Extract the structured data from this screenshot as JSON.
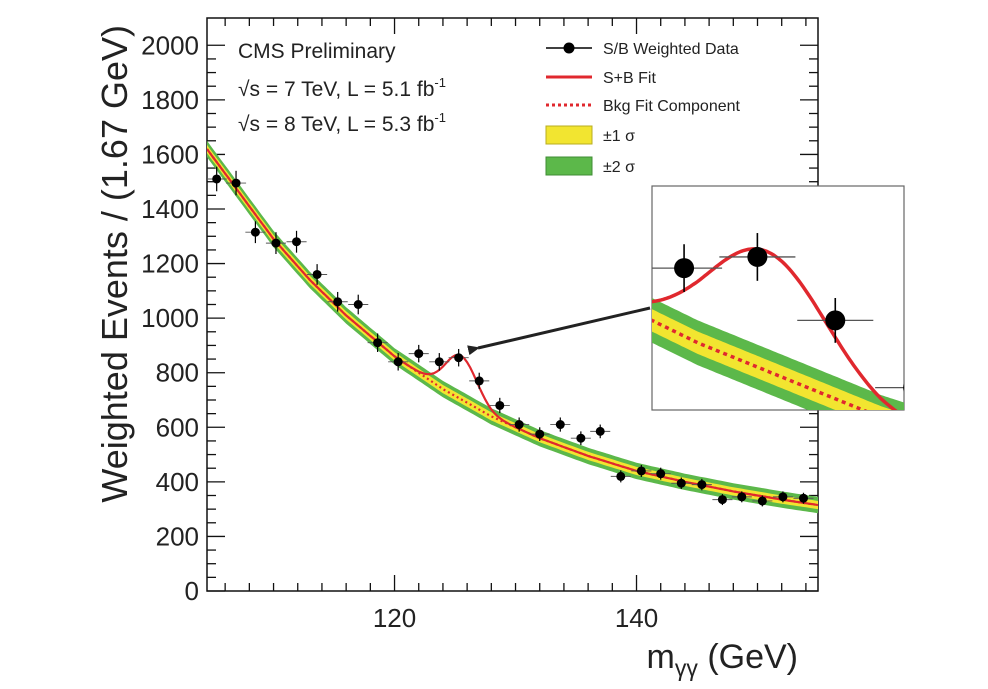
{
  "chart_data": {
    "type": "scatter",
    "xlabel": "mγγ (GeV)",
    "ylabel": "Weighted Events / (1.67 GeV)",
    "xlim": [
      104.5,
      155
    ],
    "ylim": [
      0,
      2100
    ],
    "x_ticks": [
      120,
      140
    ],
    "y_ticks": [
      0,
      200,
      400,
      600,
      800,
      1000,
      1200,
      1400,
      1600,
      1800,
      2000
    ],
    "grid": false,
    "legend_position": "top-right",
    "annotations": {
      "experiment": "CMS Preliminary",
      "run1": "√s = 7 TeV, L = 5.1 fb",
      "run1_sup": "-1",
      "run2": "√s = 8 TeV, L = 5.3 fb",
      "run2_sup": "-1"
    },
    "legend": [
      {
        "label": "S/B Weighted Data",
        "kind": "data"
      },
      {
        "label": "S+B Fit",
        "kind": "line"
      },
      {
        "label": "Bkg Fit Component",
        "kind": "dotted"
      },
      {
        "label": "±1 σ",
        "kind": "band1"
      },
      {
        "label": "±2 σ",
        "kind": "band2"
      }
    ],
    "colors": {
      "fit": "#e0282e",
      "band1": "#f2e530",
      "band2": "#5cb84a",
      "data": "#000000",
      "arrow": "#222222"
    },
    "data_series": {
      "name": "S/B Weighted Data",
      "x": [
        105.3,
        106.9,
        108.5,
        110.2,
        111.9,
        113.6,
        115.3,
        117.0,
        118.6,
        120.3,
        122.0,
        123.7,
        125.3,
        127.0,
        128.7,
        130.3,
        132.0,
        133.7,
        135.4,
        137.0,
        138.7,
        140.4,
        142.0,
        143.7,
        145.4,
        147.1,
        148.7,
        150.4,
        152.1,
        153.8
      ],
      "y": [
        1510,
        1495,
        1315,
        1275,
        1280,
        1160,
        1060,
        1050,
        910,
        840,
        870,
        840,
        855,
        770,
        680,
        610,
        575,
        610,
        560,
        585,
        420,
        440,
        430,
        395,
        390,
        335,
        345,
        330,
        345,
        340
      ],
      "yerr": [
        45,
        45,
        40,
        40,
        40,
        38,
        36,
        36,
        34,
        32,
        32,
        32,
        32,
        30,
        28,
        26,
        25,
        26,
        25,
        25,
        22,
        22,
        22,
        21,
        21,
        20,
        20,
        20,
        20,
        20
      ]
    },
    "background_fit": {
      "x": [
        104.5,
        107,
        110,
        113,
        116,
        120,
        124,
        128,
        132,
        136,
        140,
        144,
        148,
        152,
        155
      ],
      "y": [
        1620,
        1470,
        1290,
        1140,
        1010,
        860,
        740,
        640,
        560,
        495,
        440,
        400,
        365,
        335,
        315
      ]
    },
    "band_halfwidth_1sigma": 15,
    "band_halfwidth_2sigma": 30,
    "signal_peak": {
      "mass": 125.5,
      "height": 160,
      "width": 1.3
    },
    "inset": {
      "xlim": [
        123.0,
        128.5
      ],
      "ylim": [
        650,
        950
      ]
    }
  }
}
